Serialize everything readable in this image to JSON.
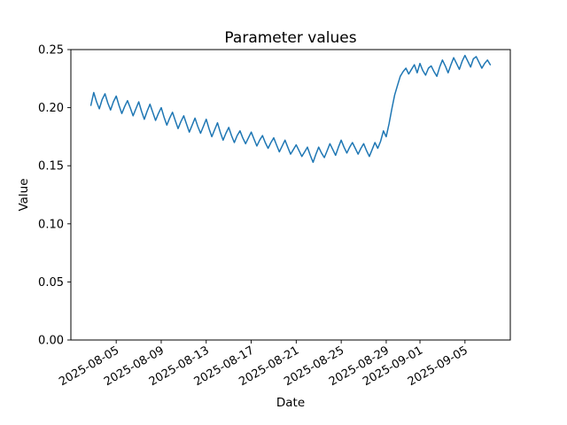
{
  "chart_data": {
    "type": "line",
    "title": "Parameter values",
    "xlabel": "Date",
    "ylabel": "Value",
    "series_color": "#1f77b4",
    "grid": false,
    "legend": false,
    "ylim": [
      0.0,
      0.25
    ],
    "yticks": [
      0.0,
      0.05,
      0.1,
      0.15,
      0.2,
      0.25
    ],
    "yticklabels": [
      "0.00",
      "0.05",
      "0.10",
      "0.15",
      "0.20",
      "0.25"
    ],
    "x_reference_date": "2025-08-05",
    "xlim_days": [
      -4.03,
      35.03
    ],
    "xtick_offsets_days": [
      0,
      4,
      8,
      12,
      16,
      20,
      24,
      27,
      31
    ],
    "xticklabels": [
      "2025-08-05",
      "2025-08-09",
      "2025-08-13",
      "2025-08-17",
      "2025-08-21",
      "2025-08-25",
      "2025-08-29",
      "2025-09-01",
      "2025-09-05"
    ],
    "series_name": "Parameter value",
    "points_days_value": [
      [
        -2.25,
        0.202
      ],
      [
        -2.0,
        0.213
      ],
      [
        -1.75,
        0.205
      ],
      [
        -1.5,
        0.199
      ],
      [
        -1.25,
        0.207
      ],
      [
        -1.0,
        0.212
      ],
      [
        -0.75,
        0.204
      ],
      [
        -0.5,
        0.198
      ],
      [
        -0.25,
        0.205
      ],
      [
        0.0,
        0.21
      ],
      [
        0.25,
        0.202
      ],
      [
        0.5,
        0.195
      ],
      [
        0.75,
        0.201
      ],
      [
        1.0,
        0.206
      ],
      [
        1.25,
        0.2
      ],
      [
        1.5,
        0.193
      ],
      [
        1.75,
        0.199
      ],
      [
        2.0,
        0.205
      ],
      [
        2.25,
        0.197
      ],
      [
        2.5,
        0.19
      ],
      [
        2.75,
        0.197
      ],
      [
        3.0,
        0.203
      ],
      [
        3.25,
        0.196
      ],
      [
        3.5,
        0.189
      ],
      [
        3.75,
        0.195
      ],
      [
        4.0,
        0.2
      ],
      [
        4.25,
        0.192
      ],
      [
        4.5,
        0.185
      ],
      [
        4.75,
        0.191
      ],
      [
        5.0,
        0.196
      ],
      [
        5.25,
        0.189
      ],
      [
        5.5,
        0.182
      ],
      [
        5.75,
        0.188
      ],
      [
        6.0,
        0.193
      ],
      [
        6.25,
        0.186
      ],
      [
        6.5,
        0.179
      ],
      [
        6.75,
        0.185
      ],
      [
        7.0,
        0.191
      ],
      [
        7.25,
        0.184
      ],
      [
        7.5,
        0.178
      ],
      [
        7.75,
        0.184
      ],
      [
        8.0,
        0.19
      ],
      [
        8.25,
        0.182
      ],
      [
        8.5,
        0.175
      ],
      [
        8.75,
        0.181
      ],
      [
        9.0,
        0.187
      ],
      [
        9.25,
        0.179
      ],
      [
        9.5,
        0.172
      ],
      [
        9.75,
        0.178
      ],
      [
        10.0,
        0.183
      ],
      [
        10.25,
        0.176
      ],
      [
        10.5,
        0.17
      ],
      [
        10.75,
        0.176
      ],
      [
        11.0,
        0.18
      ],
      [
        11.25,
        0.174
      ],
      [
        11.5,
        0.169
      ],
      [
        11.75,
        0.174
      ],
      [
        12.0,
        0.179
      ],
      [
        12.25,
        0.173
      ],
      [
        12.5,
        0.167
      ],
      [
        12.75,
        0.172
      ],
      [
        13.0,
        0.176
      ],
      [
        13.25,
        0.17
      ],
      [
        13.5,
        0.165
      ],
      [
        13.75,
        0.17
      ],
      [
        14.0,
        0.174
      ],
      [
        14.25,
        0.168
      ],
      [
        14.5,
        0.162
      ],
      [
        14.75,
        0.167
      ],
      [
        15.0,
        0.172
      ],
      [
        15.25,
        0.166
      ],
      [
        15.5,
        0.16
      ],
      [
        15.75,
        0.164
      ],
      [
        16.0,
        0.168
      ],
      [
        16.25,
        0.163
      ],
      [
        16.5,
        0.158
      ],
      [
        16.75,
        0.162
      ],
      [
        17.0,
        0.166
      ],
      [
        17.25,
        0.159
      ],
      [
        17.5,
        0.153
      ],
      [
        17.75,
        0.16
      ],
      [
        18.0,
        0.166
      ],
      [
        18.25,
        0.161
      ],
      [
        18.5,
        0.157
      ],
      [
        18.75,
        0.163
      ],
      [
        19.0,
        0.169
      ],
      [
        19.25,
        0.164
      ],
      [
        19.5,
        0.159
      ],
      [
        19.75,
        0.166
      ],
      [
        20.0,
        0.172
      ],
      [
        20.25,
        0.166
      ],
      [
        20.5,
        0.161
      ],
      [
        20.75,
        0.166
      ],
      [
        21.0,
        0.17
      ],
      [
        21.25,
        0.165
      ],
      [
        21.5,
        0.16
      ],
      [
        21.75,
        0.165
      ],
      [
        22.0,
        0.169
      ],
      [
        22.25,
        0.163
      ],
      [
        22.5,
        0.158
      ],
      [
        22.75,
        0.164
      ],
      [
        23.0,
        0.17
      ],
      [
        23.25,
        0.165
      ],
      [
        23.5,
        0.171
      ],
      [
        23.75,
        0.18
      ],
      [
        24.0,
        0.175
      ],
      [
        24.25,
        0.186
      ],
      [
        24.5,
        0.199
      ],
      [
        24.75,
        0.211
      ],
      [
        25.0,
        0.219
      ],
      [
        25.25,
        0.227
      ],
      [
        25.5,
        0.231
      ],
      [
        25.75,
        0.234
      ],
      [
        26.0,
        0.229
      ],
      [
        26.25,
        0.233
      ],
      [
        26.5,
        0.237
      ],
      [
        26.75,
        0.23
      ],
      [
        27.0,
        0.238
      ],
      [
        27.25,
        0.232
      ],
      [
        27.5,
        0.228
      ],
      [
        27.75,
        0.234
      ],
      [
        28.0,
        0.236
      ],
      [
        28.25,
        0.231
      ],
      [
        28.5,
        0.227
      ],
      [
        28.75,
        0.235
      ],
      [
        29.0,
        0.241
      ],
      [
        29.25,
        0.236
      ],
      [
        29.5,
        0.23
      ],
      [
        29.75,
        0.237
      ],
      [
        30.0,
        0.243
      ],
      [
        30.25,
        0.238
      ],
      [
        30.5,
        0.233
      ],
      [
        30.75,
        0.24
      ],
      [
        31.0,
        0.245
      ],
      [
        31.25,
        0.24
      ],
      [
        31.5,
        0.235
      ],
      [
        31.75,
        0.242
      ],
      [
        32.0,
        0.244
      ],
      [
        32.25,
        0.239
      ],
      [
        32.5,
        0.234
      ],
      [
        32.75,
        0.238
      ],
      [
        33.0,
        0.241
      ],
      [
        33.25,
        0.237
      ]
    ]
  }
}
